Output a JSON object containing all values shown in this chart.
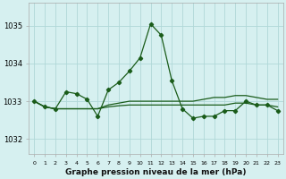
{
  "title": "Graphe pression niveau de la mer (hPa)",
  "background_color": "#d6f0f0",
  "grid_color": "#b0d8d8",
  "line_color": "#1a5c1a",
  "x_labels": [
    "0",
    "1",
    "2",
    "3",
    "4",
    "5",
    "6",
    "7",
    "8",
    "9",
    "10",
    "11",
    "12",
    "13",
    "14",
    "15",
    "16",
    "17",
    "18",
    "19",
    "20",
    "21",
    "22",
    "23"
  ],
  "ylim": [
    1031.6,
    1035.6
  ],
  "yticks": [
    1032,
    1033,
    1034,
    1035
  ],
  "series1": [
    1033.0,
    1032.85,
    1032.8,
    1033.25,
    1033.2,
    1033.05,
    1032.6,
    1033.3,
    1033.5,
    1033.8,
    1034.15,
    1035.05,
    1034.75,
    1033.55,
    1032.8,
    1032.55,
    1032.6,
    1032.6,
    1032.75,
    1032.75,
    1033.0,
    1032.9,
    1032.9,
    1032.75
  ],
  "series2": [
    1033.0,
    1032.85,
    1032.8,
    1032.8,
    1032.8,
    1032.8,
    1032.8,
    1032.85,
    1032.88,
    1032.9,
    1032.9,
    1032.9,
    1032.9,
    1032.9,
    1032.9,
    1032.9,
    1032.9,
    1032.9,
    1032.9,
    1032.95,
    1032.95,
    1032.9,
    1032.9,
    1032.85
  ],
  "series3": [
    1033.0,
    1032.85,
    1032.8,
    1032.8,
    1032.8,
    1032.8,
    1032.8,
    1032.9,
    1032.95,
    1033.0,
    1033.0,
    1033.0,
    1033.0,
    1033.0,
    1033.0,
    1033.0,
    1033.05,
    1033.1,
    1033.1,
    1033.15,
    1033.15,
    1033.1,
    1033.05,
    1033.05
  ]
}
